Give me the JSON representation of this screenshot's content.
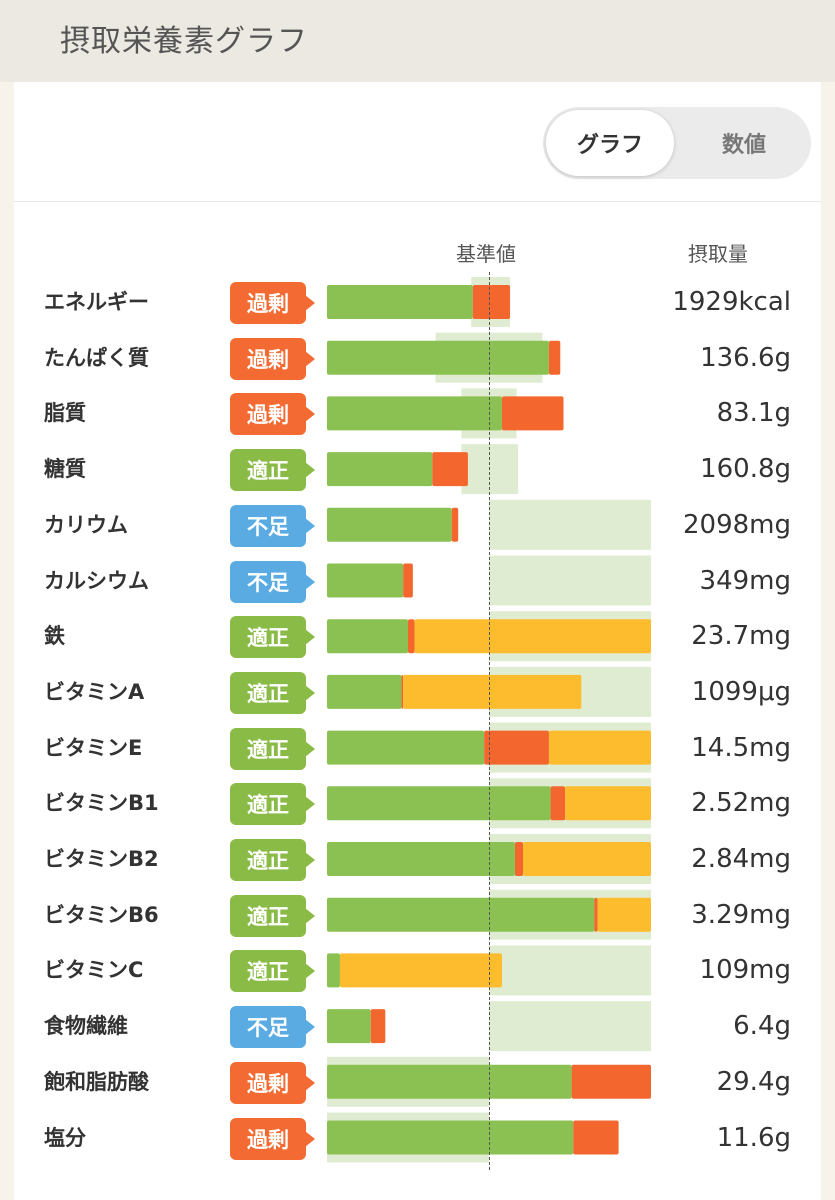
{
  "header": {
    "title": "摂取栄養素グラフ"
  },
  "toggle": {
    "graph_label": "グラフ",
    "numeric_label": "数値",
    "selected": "グラフ"
  },
  "columns": {
    "reference": "基準値",
    "intake": "摂取量"
  },
  "status_labels": {
    "over": "過剰",
    "ok": "適正",
    "low": "不足"
  },
  "colors": {
    "over": "#f36a32",
    "ok": "#8bbb47",
    "low": "#5aabe2",
    "bar_green": "#8bc152",
    "bar_orange": "#f3672f",
    "bar_yellow": "#fdbb2e",
    "range_bg": "#e0ecd1"
  },
  "chart_data": {
    "type": "bar",
    "title": "摂取栄養素グラフ",
    "reference_label": "基準値",
    "value_label": "摂取量",
    "scale_note": "percent of reference value; reference line = 100",
    "xlim": [
      0,
      200
    ],
    "rows": [
      {
        "name": "エネルギー",
        "status": "過剰",
        "amount": "1929kcal",
        "green": 90,
        "orange": 23,
        "yellow": 0,
        "range": [
          89,
          113
        ]
      },
      {
        "name": "たんぱく質",
        "status": "過剰",
        "amount": "136.6g",
        "green": 137,
        "orange": 7,
        "yellow": 0,
        "range": [
          67,
          133
        ]
      },
      {
        "name": "脂質",
        "status": "過剰",
        "amount": "83.1g",
        "green": 108,
        "orange": 38,
        "yellow": 0,
        "range": [
          83,
          117
        ]
      },
      {
        "name": "糖質",
        "status": "適正",
        "amount": "160.8g",
        "green": 65,
        "orange": 22,
        "yellow": 0,
        "range": [
          83,
          118
        ]
      },
      {
        "name": "カリウム",
        "status": "不足",
        "amount": "2098mg",
        "green": 77,
        "orange": 4,
        "yellow": 0,
        "range": [
          100,
          200
        ]
      },
      {
        "name": "カルシウム",
        "status": "不足",
        "amount": "349mg",
        "green": 47,
        "orange": 6,
        "yellow": 0,
        "range": [
          100,
          200
        ]
      },
      {
        "name": "鉄",
        "status": "適正",
        "amount": "23.7mg",
        "green": 50,
        "orange": 4,
        "yellow": 147,
        "range": [
          100,
          200
        ]
      },
      {
        "name": "ビタミンA",
        "status": "適正",
        "amount": "1099μg",
        "green": 46,
        "orange": 1,
        "yellow": 110,
        "range": [
          100,
          200
        ]
      },
      {
        "name": "ビタミンE",
        "status": "適正",
        "amount": "14.5mg",
        "green": 97,
        "orange": 40,
        "yellow": 63,
        "range": [
          100,
          200
        ]
      },
      {
        "name": "ビタミンB1",
        "status": "適正",
        "amount": "2.52mg",
        "green": 138,
        "orange": 9,
        "yellow": 53,
        "range": [
          100,
          200
        ]
      },
      {
        "name": "ビタミンB2",
        "status": "適正",
        "amount": "2.84mg",
        "green": 116,
        "orange": 5,
        "yellow": 80,
        "range": [
          100,
          200
        ]
      },
      {
        "name": "ビタミンB6",
        "status": "適正",
        "amount": "3.29mg",
        "green": 165,
        "orange": 2,
        "yellow": 33,
        "range": [
          100,
          200
        ]
      },
      {
        "name": "ビタミンC",
        "status": "適正",
        "amount": "109mg",
        "green": 8,
        "orange": 0,
        "yellow": 100,
        "range": [
          100,
          200
        ]
      },
      {
        "name": "食物繊維",
        "status": "不足",
        "amount": "6.4g",
        "green": 27,
        "orange": 9,
        "yellow": 0,
        "range": [
          100,
          200
        ]
      },
      {
        "name": "飽和脂肪酸",
        "status": "過剰",
        "amount": "29.4g",
        "green": 151,
        "orange": 49,
        "yellow": 0,
        "range": [
          0,
          100
        ]
      },
      {
        "name": "塩分",
        "status": "過剰",
        "amount": "11.6g",
        "green": 152,
        "orange": 28,
        "yellow": 0,
        "range": [
          0,
          100
        ]
      }
    ]
  }
}
